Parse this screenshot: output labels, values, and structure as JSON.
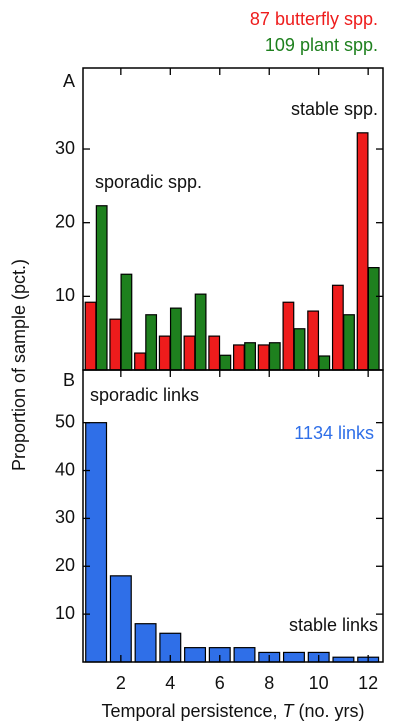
{
  "chart_data": [
    {
      "type": "bar",
      "panel": "A",
      "ylabel": "Proportion of sample (pct.)",
      "annotations": [
        "stable spp.",
        "sporadic spp."
      ],
      "categories": [
        1,
        2,
        3,
        4,
        5,
        6,
        7,
        8,
        9,
        10,
        11,
        12
      ],
      "series": [
        {
          "name": "87 butterfly spp.",
          "color": "#ee1c1c",
          "values": [
            9.2,
            6.9,
            2.3,
            4.6,
            4.6,
            4.6,
            3.4,
            3.4,
            9.2,
            8.0,
            11.5,
            32.2
          ]
        },
        {
          "name": "109 plant spp.",
          "color": "#1e801e",
          "values": [
            22.3,
            13.0,
            7.5,
            8.4,
            10.3,
            2.0,
            3.7,
            3.7,
            5.6,
            1.9,
            7.5,
            13.9
          ]
        }
      ],
      "xlim": [
        0.47,
        12.6
      ],
      "xticks": [
        2,
        4,
        6,
        8,
        10,
        12
      ],
      "ylim": [
        0,
        41
      ],
      "yticks": [
        10,
        20,
        30
      ]
    },
    {
      "type": "bar",
      "panel": "B",
      "xlabel": [
        "Temporal persistence, ",
        "T",
        " (no. yrs)"
      ],
      "annotations": [
        "sporadic links",
        "1134 links",
        "stable links"
      ],
      "categories": [
        1,
        2,
        3,
        4,
        5,
        6,
        7,
        8,
        9,
        10,
        11,
        12
      ],
      "series": [
        {
          "name": "1134 links",
          "color": "#2f6fe8",
          "values": [
            50,
            18,
            8,
            6,
            3,
            3,
            3,
            2,
            2,
            2,
            1,
            1
          ]
        }
      ],
      "xlim": [
        0.47,
        12.6
      ],
      "xticks": [
        2,
        4,
        6,
        8,
        10,
        12
      ],
      "ylim": [
        0,
        61
      ],
      "yticks": [
        10,
        20,
        30,
        40,
        50
      ]
    }
  ]
}
